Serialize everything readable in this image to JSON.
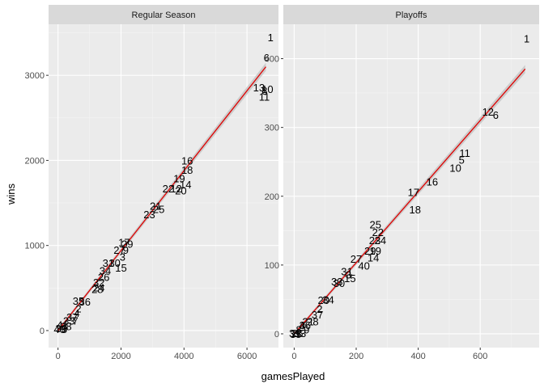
{
  "chart_data": [
    {
      "type": "scatter",
      "title": "Regular Season",
      "xlabel": "gamesPlayed",
      "ylabel": "wins",
      "xlim": [
        -300,
        7000
      ],
      "ylim": [
        -200,
        3600
      ],
      "xticks": [
        0,
        2000,
        4000,
        6000
      ],
      "yticks": [
        0,
        1000,
        2000,
        3000
      ],
      "xtick_labels": [
        "0",
        "2000",
        "4000",
        "6000"
      ],
      "ytick_labels": [
        "0",
        "1000",
        "2000",
        "3000"
      ],
      "grid": true,
      "fit_line": {
        "x0": 0,
        "y0": 0,
        "x1": 6600,
        "y1": 3100
      },
      "points": [
        {
          "label": "1",
          "x": 6750,
          "y": 3440
        },
        {
          "label": "6",
          "x": 6620,
          "y": 3200
        },
        {
          "label": "13",
          "x": 6380,
          "y": 2850
        },
        {
          "label": "10",
          "x": 6650,
          "y": 2830
        },
        {
          "label": "8",
          "x": 6560,
          "y": 2810
        },
        {
          "label": "11",
          "x": 6550,
          "y": 2740
        },
        {
          "label": "16",
          "x": 4100,
          "y": 1990
        },
        {
          "label": "18",
          "x": 4100,
          "y": 1880
        },
        {
          "label": "19",
          "x": 3850,
          "y": 1780
        },
        {
          "label": "14",
          "x": 4050,
          "y": 1710
        },
        {
          "label": "22",
          "x": 3500,
          "y": 1660
        },
        {
          "label": "12",
          "x": 3750,
          "y": 1660
        },
        {
          "label": "20",
          "x": 3900,
          "y": 1640
        },
        {
          "label": "21",
          "x": 3100,
          "y": 1460
        },
        {
          "label": "25",
          "x": 3200,
          "y": 1420
        },
        {
          "label": "23",
          "x": 2900,
          "y": 1360
        },
        {
          "label": "17",
          "x": 2100,
          "y": 1030
        },
        {
          "label": "29",
          "x": 2200,
          "y": 1010
        },
        {
          "label": "27",
          "x": 1950,
          "y": 940
        },
        {
          "label": "9",
          "x": 2150,
          "y": 940
        },
        {
          "label": "3",
          "x": 2050,
          "y": 860
        },
        {
          "label": "30",
          "x": 1800,
          "y": 790
        },
        {
          "label": "31",
          "x": 1600,
          "y": 790
        },
        {
          "label": "15",
          "x": 2000,
          "y": 730
        },
        {
          "label": "34",
          "x": 1500,
          "y": 700
        },
        {
          "label": "26",
          "x": 1450,
          "y": 620
        },
        {
          "label": "32",
          "x": 1300,
          "y": 560
        },
        {
          "label": "24",
          "x": 1300,
          "y": 500
        },
        {
          "label": "28",
          "x": 1250,
          "y": 480
        },
        {
          "label": "35",
          "x": 650,
          "y": 340
        },
        {
          "label": "36",
          "x": 850,
          "y": 330
        },
        {
          "label": "2",
          "x": 650,
          "y": 250
        },
        {
          "label": "4",
          "x": 600,
          "y": 200
        },
        {
          "label": "37",
          "x": 450,
          "y": 150
        },
        {
          "label": "33",
          "x": 350,
          "y": 110
        },
        {
          "label": "7",
          "x": 550,
          "y": 110
        },
        {
          "label": "38",
          "x": 250,
          "y": 40
        },
        {
          "label": "5",
          "x": 200,
          "y": 10
        },
        {
          "label": "39",
          "x": 100,
          "y": 20
        },
        {
          "label": "40",
          "x": 50,
          "y": 10
        },
        {
          "label": "41",
          "x": 150,
          "y": 60
        }
      ]
    },
    {
      "type": "scatter",
      "title": "Playoffs",
      "xlabel": "gamesPlayed",
      "ylabel": "wins",
      "xlim": [
        -35,
        790
      ],
      "ylim": [
        -20,
        450
      ],
      "xticks": [
        0,
        200,
        400,
        600
      ],
      "yticks": [
        0,
        100,
        200,
        300,
        400
      ],
      "xtick_labels": [
        "0",
        "200",
        "400",
        "600"
      ],
      "ytick_labels": [
        "0",
        "100",
        "200",
        "300",
        "400"
      ],
      "grid": true,
      "fit_line": {
        "x0": 0,
        "y0": 0,
        "x1": 745,
        "y1": 385
      },
      "points": [
        {
          "label": "1",
          "x": 750,
          "y": 428
        },
        {
          "label": "12",
          "x": 625,
          "y": 322
        },
        {
          "label": "6",
          "x": 650,
          "y": 317
        },
        {
          "label": "11",
          "x": 550,
          "y": 262
        },
        {
          "label": "5",
          "x": 540,
          "y": 252
        },
        {
          "label": "10",
          "x": 520,
          "y": 240
        },
        {
          "label": "16",
          "x": 445,
          "y": 220
        },
        {
          "label": "17",
          "x": 385,
          "y": 205
        },
        {
          "label": "18",
          "x": 390,
          "y": 180
        },
        {
          "label": "25",
          "x": 262,
          "y": 158
        },
        {
          "label": "22",
          "x": 270,
          "y": 147
        },
        {
          "label": "23",
          "x": 260,
          "y": 135
        },
        {
          "label": "24",
          "x": 278,
          "y": 135
        },
        {
          "label": "29",
          "x": 245,
          "y": 120
        },
        {
          "label": "19",
          "x": 262,
          "y": 120
        },
        {
          "label": "14",
          "x": 255,
          "y": 110
        },
        {
          "label": "27",
          "x": 200,
          "y": 108
        },
        {
          "label": "40",
          "x": 225,
          "y": 98
        },
        {
          "label": "31",
          "x": 170,
          "y": 90
        },
        {
          "label": "3",
          "x": 175,
          "y": 85
        },
        {
          "label": "15",
          "x": 180,
          "y": 80
        },
        {
          "label": "30",
          "x": 145,
          "y": 73
        },
        {
          "label": "33",
          "x": 138,
          "y": 75
        },
        {
          "label": "20",
          "x": 95,
          "y": 48
        },
        {
          "label": "34",
          "x": 110,
          "y": 49
        },
        {
          "label": "2",
          "x": 82,
          "y": 35
        },
        {
          "label": "37",
          "x": 75,
          "y": 27
        },
        {
          "label": "21",
          "x": 45,
          "y": 17
        },
        {
          "label": "28",
          "x": 60,
          "y": 17
        },
        {
          "label": "36",
          "x": 35,
          "y": 12
        },
        {
          "label": "4",
          "x": 25,
          "y": 12
        },
        {
          "label": "8",
          "x": 15,
          "y": 5
        },
        {
          "label": "9",
          "x": 40,
          "y": 5
        },
        {
          "label": "13",
          "x": 20,
          "y": 0
        },
        {
          "label": "26",
          "x": 10,
          "y": 0
        },
        {
          "label": "35",
          "x": 5,
          "y": -1
        },
        {
          "label": "39",
          "x": 2,
          "y": 0
        }
      ]
    }
  ]
}
